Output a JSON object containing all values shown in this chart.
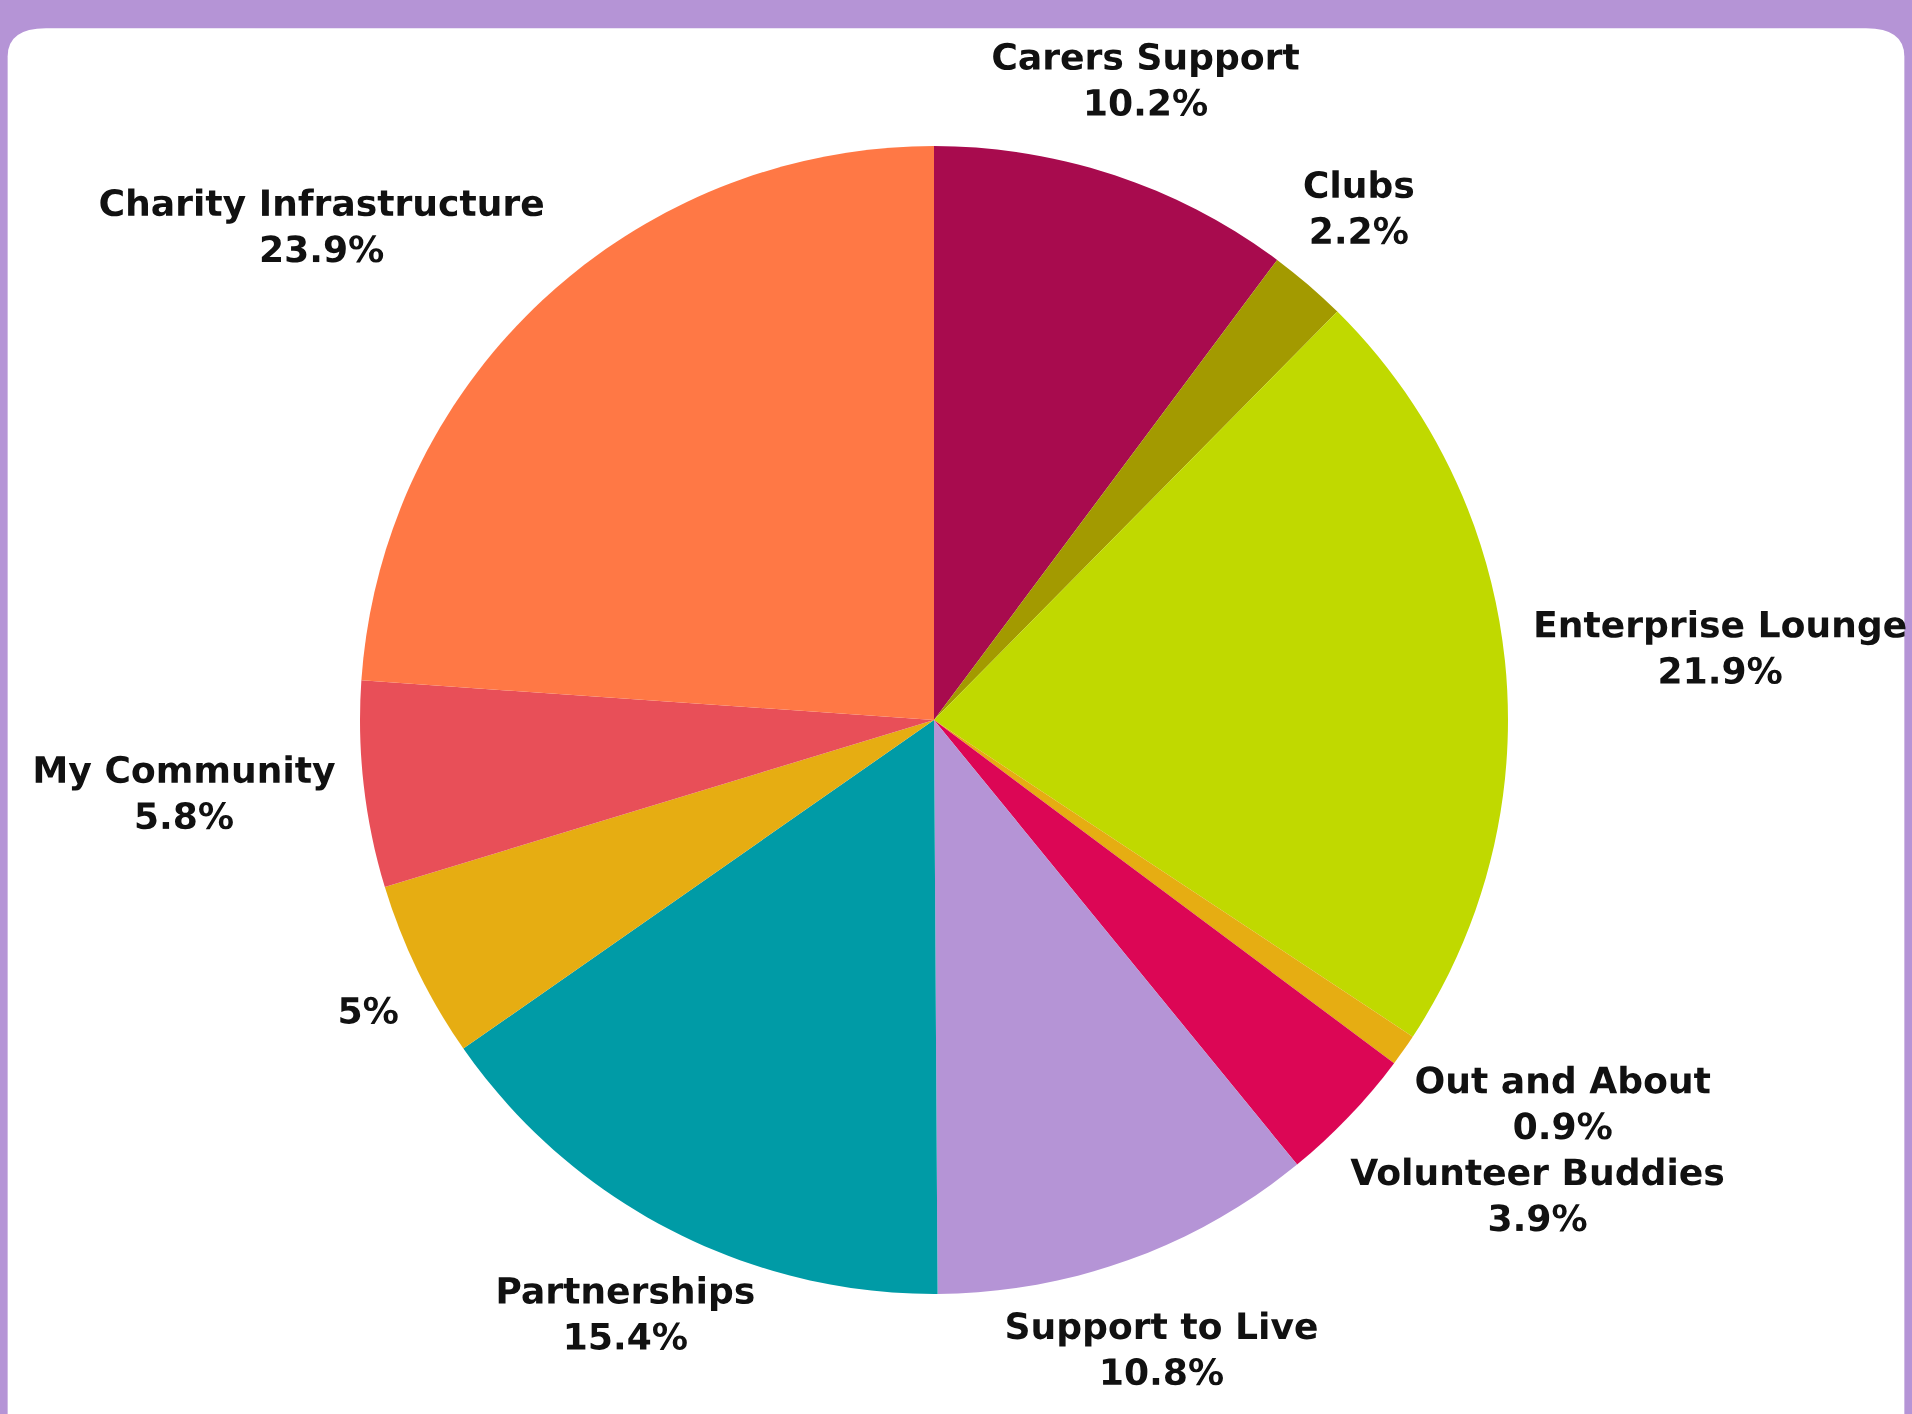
{
  "chart_data": {
    "type": "pie",
    "categories": [
      "Carers Support",
      "Clubs",
      "Enterprise Lounge",
      "Out and About",
      "Volunteer Buddies",
      "Support to Live",
      "Partnerships",
      null,
      "My Community",
      "Charity Infrastructure"
    ],
    "values": [
      10.2,
      2.2,
      21.9,
      0.9,
      3.9,
      10.8,
      15.4,
      5,
      5.8,
      23.9
    ],
    "value_labels": [
      "10.2%",
      "2.2%",
      "21.9%",
      "0.9%",
      "3.9%",
      "10.8%",
      "15.4%",
      "5%",
      "5.8%",
      "23.9%"
    ],
    "colors": [
      "#a80b4e",
      "#a39a00",
      "#c0d900",
      "#e6ad12",
      "#dc0655",
      "#b594d6",
      "#009ba6",
      "#e6ad12",
      "#e84f58",
      "#ff7845"
    ],
    "legend": false
  }
}
